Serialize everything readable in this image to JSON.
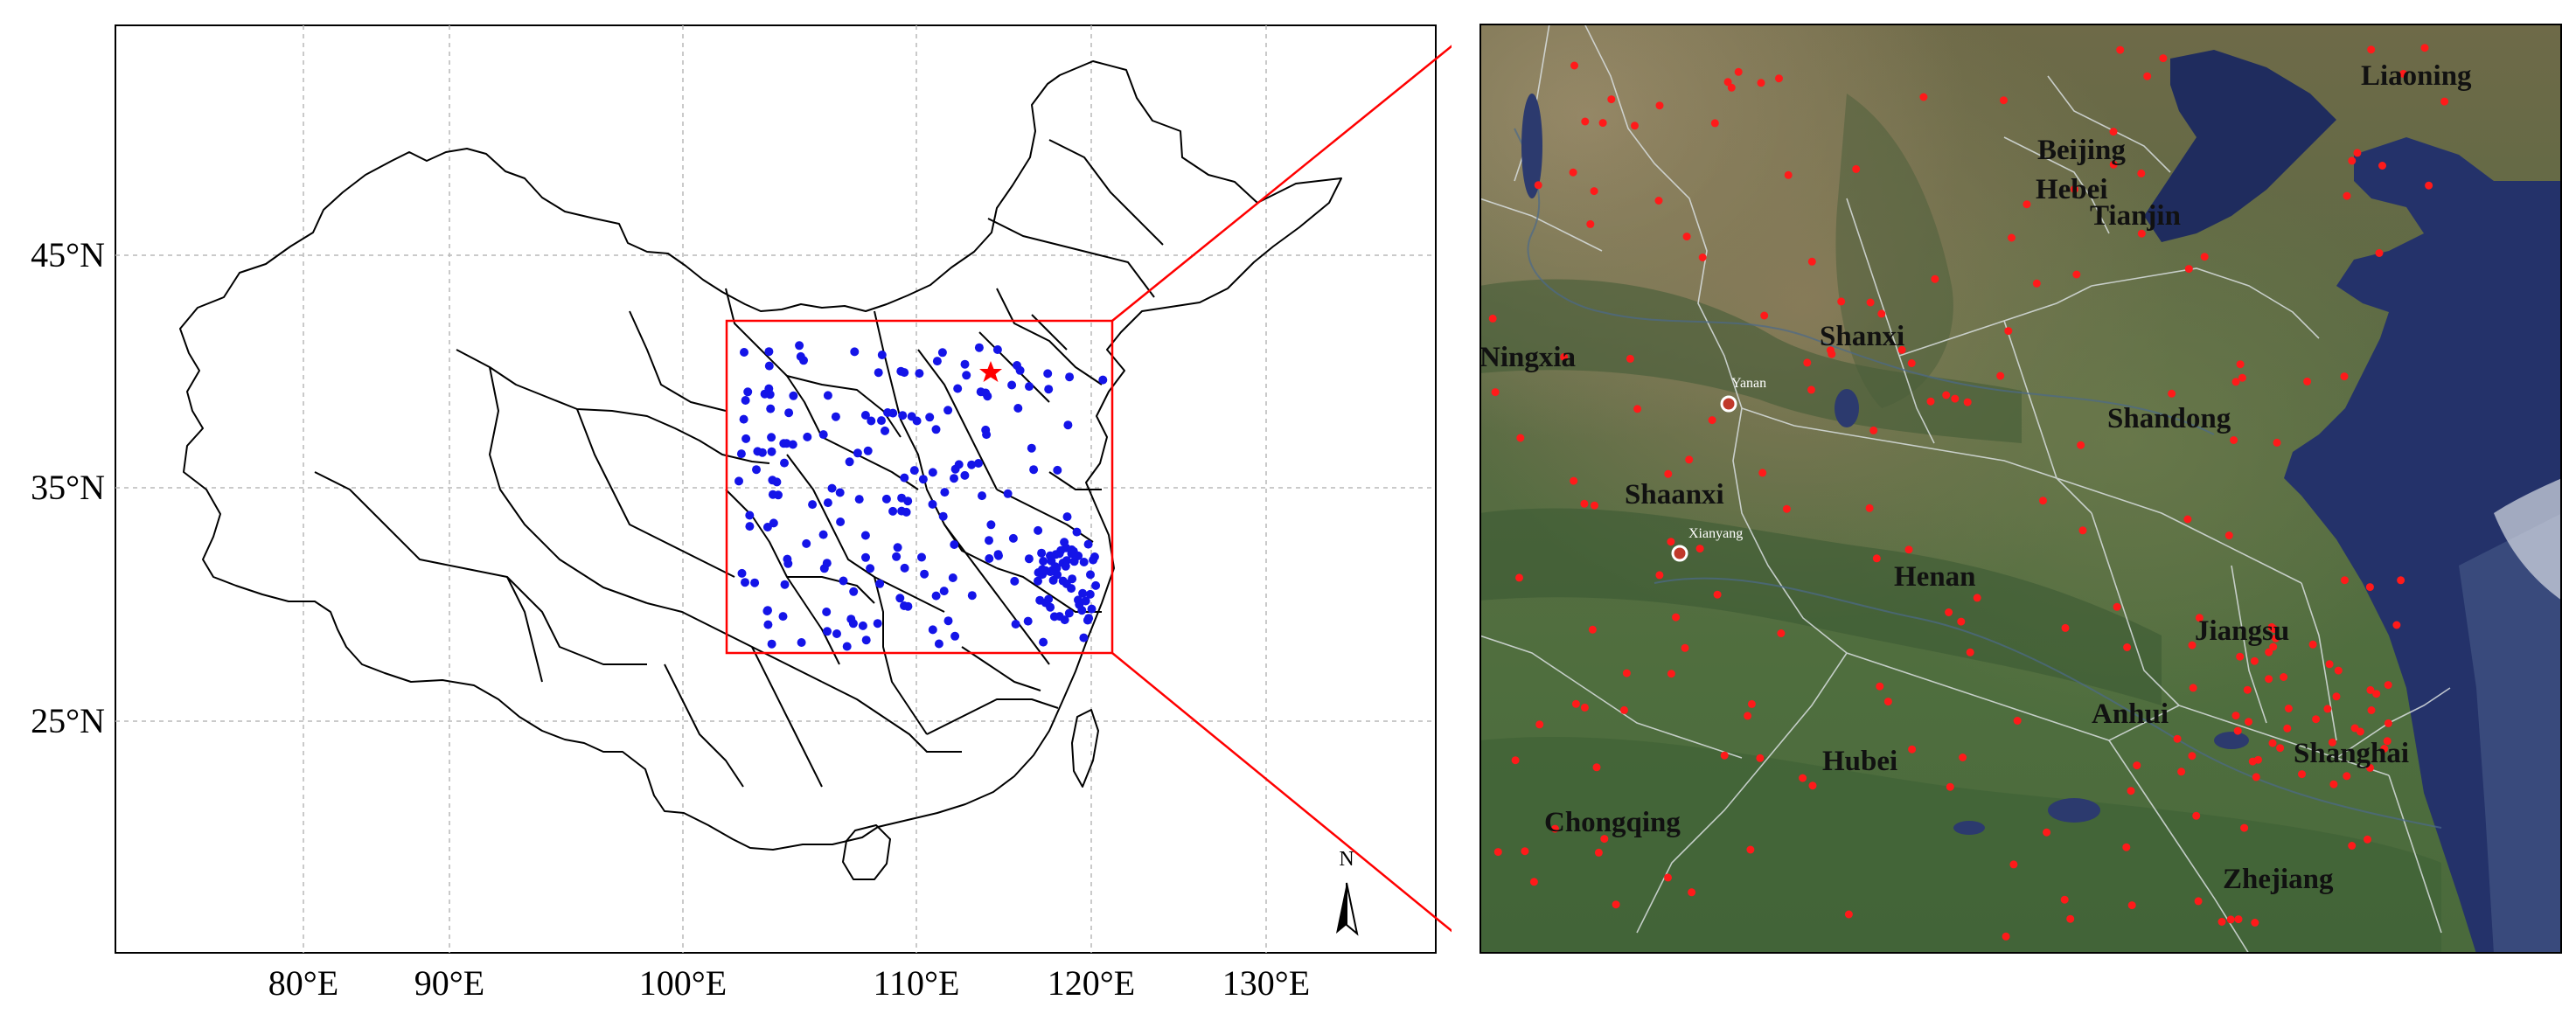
{
  "left_map": {
    "lat_labels": [
      "45°N",
      "35°N",
      "25°N"
    ],
    "lon_labels": [
      "80°E",
      "90°E",
      "100°E",
      "110°E",
      "120°E",
      "130°E"
    ],
    "north_arrow_label": "N",
    "colors": {
      "station": "#1010ee",
      "star": "#ff0000",
      "frame": "#ff0000",
      "border": "#000000",
      "grid": "#b0b0b0"
    },
    "markers": {
      "station": "blue-dot",
      "capital": "red-star"
    }
  },
  "right_map": {
    "province_labels": [
      "Liaoning",
      "Beijing",
      "Hebei",
      "Tianjin",
      "Shanxi",
      "Ningxia",
      "Shandong",
      "Shaanxi",
      "Henan",
      "Jiangsu",
      "Anhui",
      "Hubei",
      "Shanghai",
      "Chongqing",
      "Zhejiang"
    ],
    "city_labels": [
      "Yanan",
      "Xianyang"
    ],
    "colors": {
      "station": "#ff1a1a",
      "province_text": "#111111",
      "city_text": "#ffffff",
      "sea": "#1e2b5e",
      "land": "#5d7447"
    },
    "background": "satellite-imagery"
  }
}
